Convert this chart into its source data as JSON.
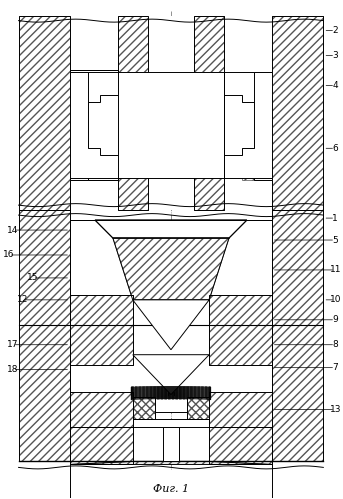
{
  "title": "Фиг. 1",
  "bg_color": "#ffffff",
  "lc": "#000000",
  "lw": 0.7,
  "fig_w": 3.43,
  "fig_h": 4.99,
  "dpi": 100
}
